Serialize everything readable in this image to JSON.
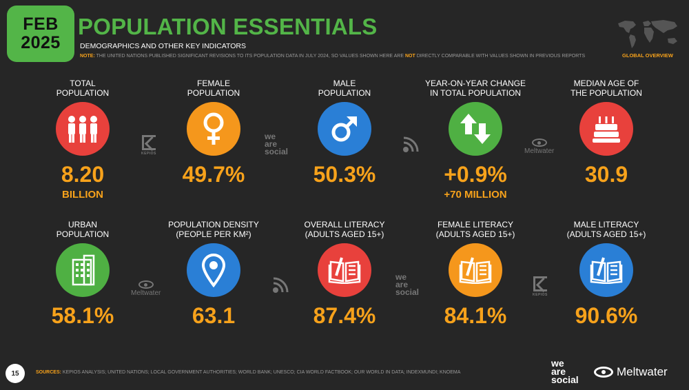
{
  "header": {
    "badge_month": "FEB",
    "badge_year": "2025",
    "title": "POPULATION ESSENTIALS",
    "subtitle": "DEMOGRAPHICS AND OTHER KEY INDICATORS",
    "note_label": "NOTE:",
    "note_text_a": "THE UNITED NATIONS PUBLISHED SIGNIFICANT REVISIONS TO ITS POPULATION DATA IN JULY 2024, SO VALUES SHOWN HERE ARE",
    "note_highlight": "NOT",
    "note_text_b": "DIRECTLY COMPARABLE WITH VALUES SHOWN IN PREVIOUS REPORTS",
    "global_label": "GLOBAL OVERVIEW"
  },
  "indicators_row1": [
    {
      "label1": "TOTAL",
      "label2": "POPULATION",
      "value": "8.20",
      "sub": "BILLION",
      "icon": "people-icon",
      "color": "#e8413c"
    },
    {
      "label1": "FEMALE",
      "label2": "POPULATION",
      "value": "49.7%",
      "sub": "",
      "icon": "female-symbol-icon",
      "color": "#f5971c"
    },
    {
      "label1": "MALE",
      "label2": "POPULATION",
      "value": "50.3%",
      "sub": "",
      "icon": "male-symbol-icon",
      "color": "#2a7fd6"
    },
    {
      "label1": "YEAR-ON-YEAR CHANGE",
      "label2": "IN TOTAL POPULATION",
      "value": "+0.9%",
      "sub": "+70 MILLION",
      "icon": "up-down-arrows-icon",
      "color": "#4fb043"
    },
    {
      "label1": "MEDIAN AGE OF",
      "label2": "THE POPULATION",
      "value": "30.9",
      "sub": "",
      "icon": "birthday-cake-icon",
      "color": "#e8413c"
    }
  ],
  "indicators_row2": [
    {
      "label1": "URBAN",
      "label2": "POPULATION",
      "value": "58.1%",
      "icon": "building-icon",
      "color": "#4fb043"
    },
    {
      "label1": "POPULATION DENSITY",
      "label2": "(PEOPLE PER KM²)",
      "value": "63.1",
      "icon": "location-pin-icon",
      "color": "#2a7fd6"
    },
    {
      "label1": "OVERALL LITERACY",
      "label2": "(ADULTS AGED 15+)",
      "value": "87.4%",
      "icon": "book-pen-icon",
      "color": "#e8413c"
    },
    {
      "label1": "FEMALE LITERACY",
      "label2": "(ADULTS AGED 15+)",
      "value": "84.1%",
      "icon": "book-pen-icon",
      "color": "#f5971c"
    },
    {
      "label1": "MALE LITERACY",
      "label2": "(ADULTS AGED 15+)",
      "value": "90.6%",
      "icon": "book-pen-icon",
      "color": "#2a7fd6"
    }
  ],
  "separators": {
    "kepios": "KEPIOS",
    "was_1": "we",
    "was_2": "are",
    "was_3": "social",
    "meltwater": "Meltwater"
  },
  "footer": {
    "page_number": "15",
    "sources_label": "SOURCES:",
    "sources_text": "KEPIOS ANALYSIS; UNITED NATIONS; LOCAL GOVERNMENT AUTHORITIES; WORLD BANK; UNESCO; CIA WORLD FACTBOOK; OUR WORLD IN DATA; INDEXMUNDI; KNOEMA",
    "was_1": "we",
    "was_2": "are",
    "was_3": "social",
    "meltwater": "Meltwater"
  }
}
